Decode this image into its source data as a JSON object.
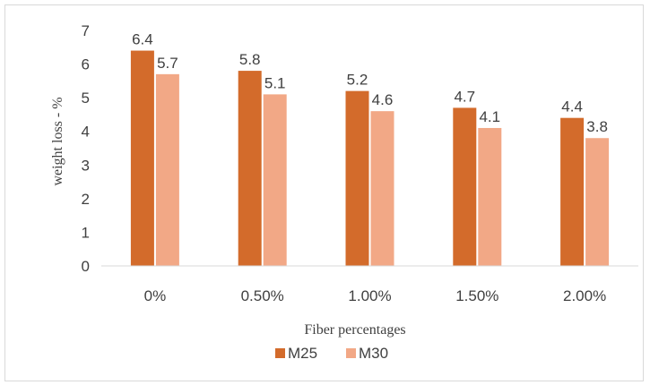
{
  "chart_data": {
    "type": "bar",
    "categories": [
      "0%",
      "0.50%",
      "1.00%",
      "1.50%",
      "2.00%"
    ],
    "series": [
      {
        "name": "M25",
        "values": [
          6.4,
          5.8,
          5.2,
          4.7,
          4.4
        ],
        "color": "#d36b2b"
      },
      {
        "name": "M30",
        "values": [
          5.7,
          5.1,
          4.6,
          4.1,
          3.8
        ],
        "color": "#f2a886"
      }
    ],
    "xlabel": "Fiber percentages",
    "ylabel": "weight loss - %",
    "ylim": [
      0,
      7
    ],
    "yticks": [
      0,
      1,
      2,
      3,
      4,
      5,
      6,
      7
    ],
    "grid": false,
    "legend": "bottom"
  }
}
